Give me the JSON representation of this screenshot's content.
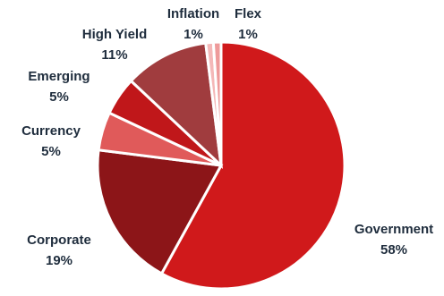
{
  "chart_data": {
    "type": "pie",
    "title": "",
    "legend": "none",
    "slices": [
      {
        "name": "Government",
        "value": 58,
        "label": "58%",
        "color": "#d0191b"
      },
      {
        "name": "Corporate",
        "value": 19,
        "label": "19%",
        "color": "#8c1518"
      },
      {
        "name": "Currency",
        "value": 5,
        "label": "5%",
        "color": "#e05a5a"
      },
      {
        "name": "Emerging",
        "value": 5,
        "label": "5%",
        "color": "#c0171a"
      },
      {
        "name": "High Yield",
        "value": 11,
        "label": "11%",
        "color": "#a03c3e"
      },
      {
        "name": "Inflation",
        "value": 1,
        "label": "1%",
        "color": "#f4b8b8"
      },
      {
        "name": "Flex",
        "value": 1,
        "label": "1%",
        "color": "#ee9a9a"
      }
    ]
  }
}
